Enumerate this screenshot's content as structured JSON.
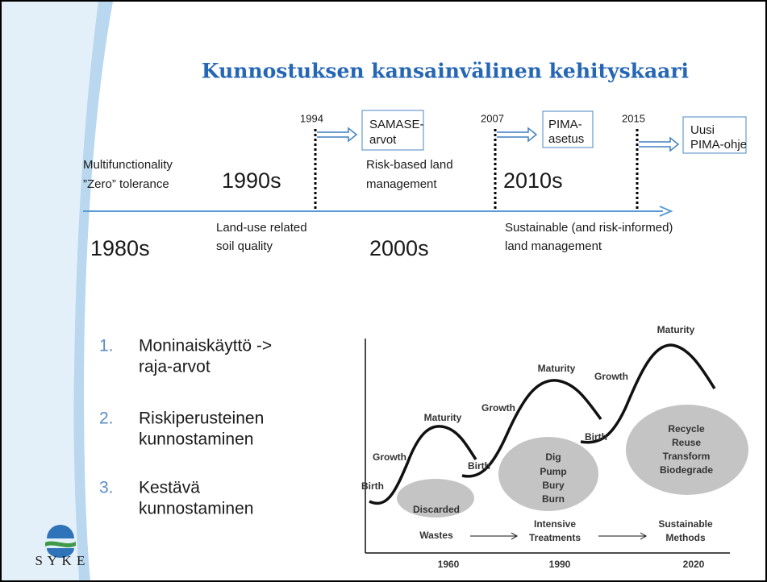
{
  "title": "Kunnostuksen kansainvälinen kehityskaari",
  "timeline": {
    "milestones": [
      {
        "year": "1994",
        "lines": [
          "SAMASE-",
          "arvot"
        ]
      },
      {
        "year": "2007",
        "lines": [
          "PIMA-",
          "asetus"
        ]
      },
      {
        "year": "2015",
        "lines": [
          "Uusi",
          "PIMA-ohje"
        ]
      }
    ],
    "descriptions": [
      {
        "lines": [
          "Multifunctionality",
          "”Zero” tolerance"
        ]
      },
      {
        "lines": [
          "Risk-based land",
          "management"
        ]
      },
      {
        "lines": [
          "Land-use related",
          "soil quality"
        ]
      },
      {
        "lines": [
          "Sustainable (and risk-informed)",
          "land management"
        ]
      }
    ],
    "decades": [
      "1990s",
      "2010s",
      "1980s",
      "2000s"
    ]
  },
  "list": [
    {
      "number": "1.",
      "lines": [
        "Moninaiskäyttö ->",
        "raja-arvot"
      ]
    },
    {
      "number": "2.",
      "lines": [
        "Riskiperusteinen",
        "kunnostaminen"
      ]
    },
    {
      "number": "3.",
      "lines": [
        "Kestävä",
        "kunnostaminen"
      ]
    }
  ],
  "figure": {
    "stages": [
      {
        "birth": "Birth",
        "growth": "Growth",
        "maturity": "Maturity",
        "cloud": [
          "Discarded"
        ],
        "method": [
          "Wastes"
        ],
        "year": "1960"
      },
      {
        "birth": "Birth",
        "growth": "Growth",
        "maturity": "Maturity",
        "cloud": [
          "Dig",
          "Pump",
          "Bury",
          "Burn"
        ],
        "method": [
          "Intensive",
          "Treatments"
        ],
        "year": "1990"
      },
      {
        "birth": "Birth",
        "growth": "Growth",
        "maturity": "Maturity",
        "cloud": [
          "Recycle",
          "Reuse",
          "Transform",
          "Biodegrade"
        ],
        "method": [
          "Sustainable",
          "Methods"
        ],
        "year": "2020"
      }
    ]
  },
  "logo": "S Y K E"
}
